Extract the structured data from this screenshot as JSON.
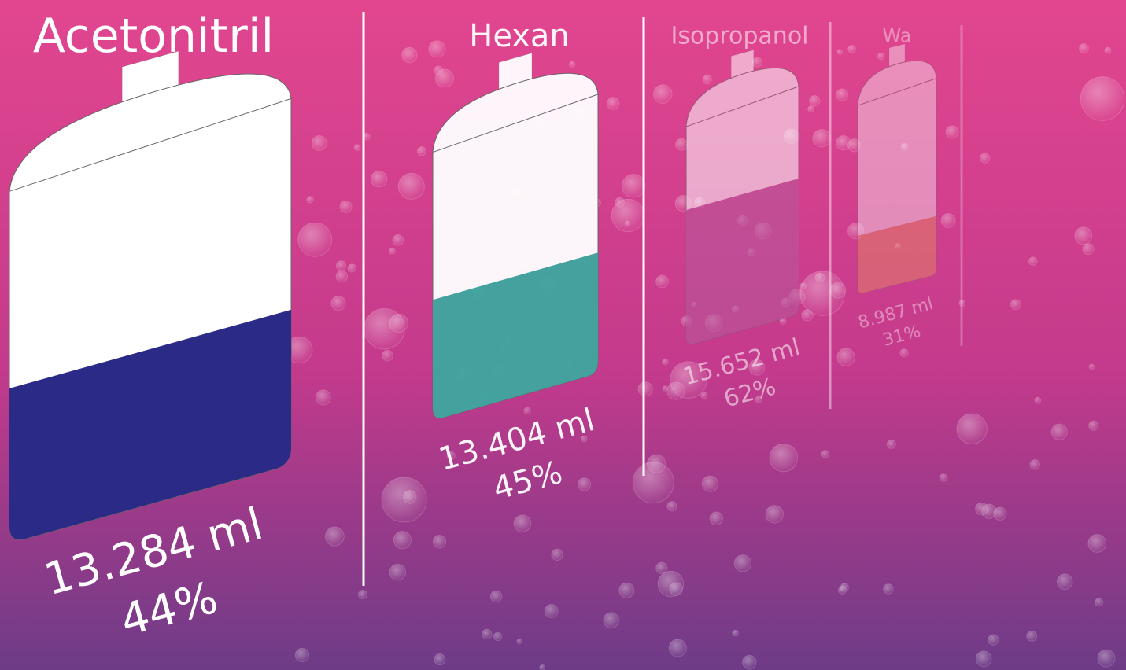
{
  "items": [
    {
      "name": "Acetonitril",
      "volume": "13.284 ml",
      "percent": 44,
      "percent_label": "44%",
      "color": "#2b2a86"
    },
    {
      "name": "Hexan",
      "volume": "13.404 ml",
      "percent": 45,
      "percent_label": "45%",
      "color": "#3ea79f"
    },
    {
      "name": "Isopropanol",
      "volume": "15.652 ml",
      "percent": 62,
      "percent_label": "62%",
      "color": "#b65a9c"
    },
    {
      "name": "Wa",
      "volume": "8.987 ml",
      "percent": 31,
      "percent_label": "31%",
      "color": "#e8985a"
    }
  ]
}
